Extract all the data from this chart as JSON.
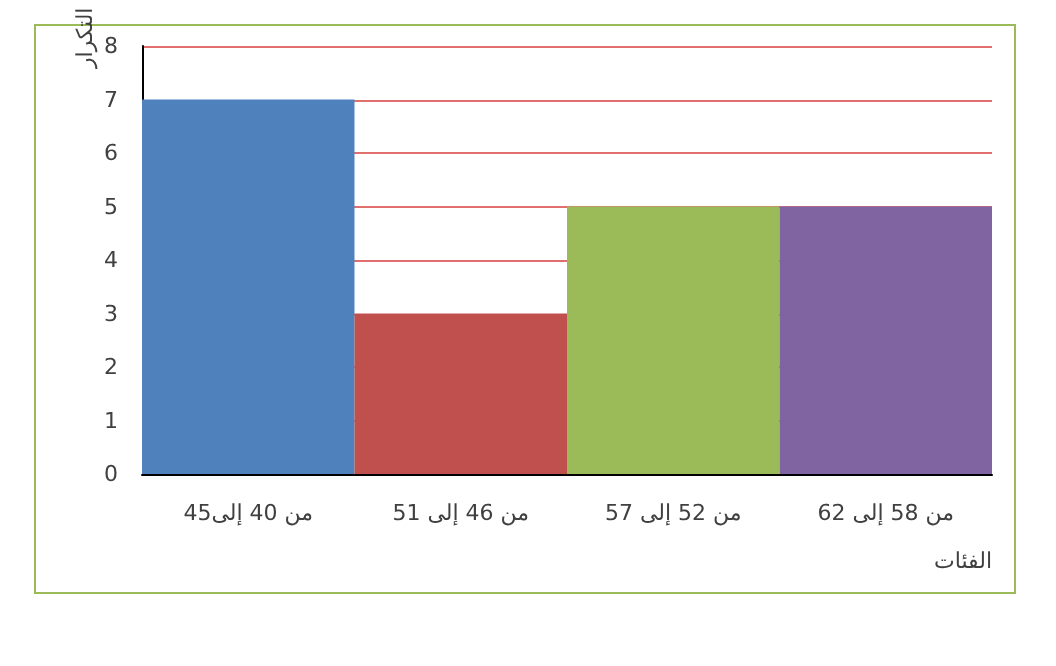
{
  "chart_data": {
    "type": "bar",
    "xlabel": "الفئات",
    "ylabel": "التكرار",
    "categories": [
      "من 40 إلى45",
      "من 46 إلى 51",
      "من 52 إلى 57",
      "من 58 إلى 62"
    ],
    "values": [
      7,
      3,
      5,
      5
    ],
    "colors": [
      "#4f81bd",
      "#c0504d",
      "#9bbb59",
      "#8064a2"
    ],
    "ylim": [
      0,
      8
    ],
    "yticks": [
      0,
      1,
      2,
      3,
      4,
      5,
      6,
      7,
      8
    ],
    "grid": "y"
  }
}
